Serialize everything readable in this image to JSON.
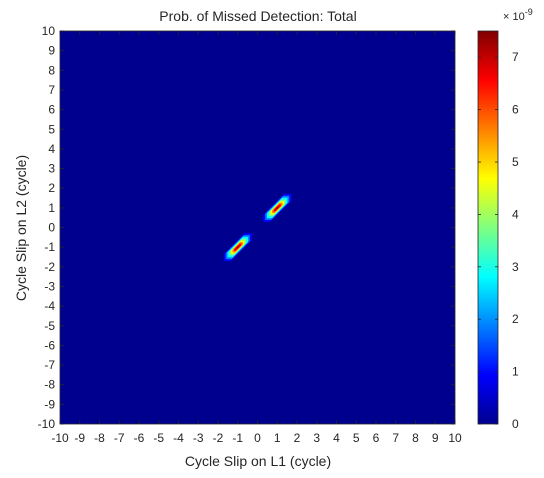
{
  "chart_data": {
    "type": "heatmap",
    "title": "Prob. of Missed Detection: Total",
    "xlabel": "Cycle Slip on L1 (cycle)",
    "ylabel": "Cycle Slip on L2 (cycle)",
    "xlim": [
      -10,
      10
    ],
    "ylim": [
      -10,
      10
    ],
    "x_ticks": [
      "-10",
      "-9",
      "-8",
      "-7",
      "-6",
      "-5",
      "-4",
      "-3",
      "-2",
      "-1",
      "0",
      "1",
      "2",
      "3",
      "4",
      "5",
      "6",
      "7",
      "8",
      "9",
      "10"
    ],
    "y_ticks": [
      "10",
      "9",
      "8",
      "7",
      "6",
      "5",
      "4",
      "3",
      "2",
      "1",
      "0",
      "-1",
      "-2",
      "-3",
      "-4",
      "-5",
      "-6",
      "-7",
      "-8",
      "-9",
      "-10"
    ],
    "colorbar": {
      "colormap": "jet",
      "min": 0,
      "max": 7.5e-09,
      "exponent_label": "× 10",
      "exponent_power": "-9",
      "ticks": [
        "0",
        "1",
        "2",
        "3",
        "4",
        "5",
        "6",
        "7"
      ]
    },
    "background_value": 0,
    "peaks": [
      {
        "x": 1,
        "y": 1,
        "value": 7.5e-09
      },
      {
        "x": -1,
        "y": -1,
        "value": 7.5e-09
      }
    ],
    "colors": {
      "background": "#00008f",
      "peak": "#800000"
    }
  }
}
